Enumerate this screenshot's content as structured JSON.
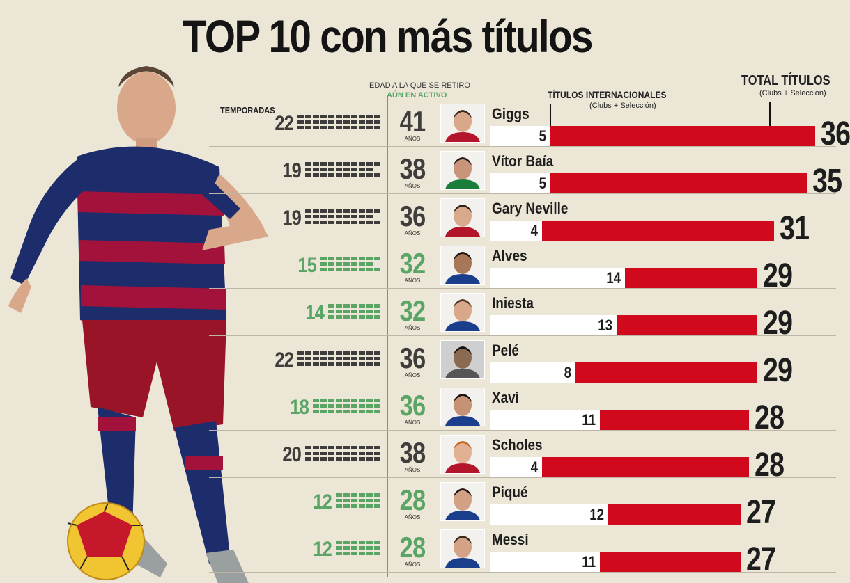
{
  "title": "TOP 10 con más títulos",
  "headers": {
    "seasons": "TEMPORADAS",
    "age_line1": "EDAD A LA QUE SE RETIRÓ",
    "age_line2": "AÚN EN ACTIVO",
    "intl_line1": "TÍTULOS INTERNACIONALES",
    "intl_line2": "(Clubs + Selección)",
    "total_line1": "TOTAL TÍTULOS",
    "total_line2": "(Clubs + Selección)",
    "age_unit": "AÑOS"
  },
  "colors": {
    "retired": "#3e3d3b",
    "active": "#5aa566",
    "bar": "#d0091c",
    "background": "#ece6d6"
  },
  "chart_data": {
    "type": "bar",
    "title": "TOP 10 con más títulos",
    "categories": [
      "Giggs",
      "Vítor Baía",
      "Gary Neville",
      "Alves",
      "Iniesta",
      "Pelé",
      "Xavi",
      "Scholes",
      "Piqué",
      "Messi"
    ],
    "series": [
      {
        "name": "TÍTULOS INTERNACIONALES",
        "values": [
          5,
          5,
          4,
          14,
          13,
          8,
          11,
          4,
          12,
          11
        ]
      },
      {
        "name": "TOTAL TÍTULOS",
        "values": [
          36,
          35,
          31,
          29,
          29,
          29,
          28,
          28,
          27,
          27
        ]
      },
      {
        "name": "TEMPORADAS",
        "values": [
          22,
          19,
          19,
          15,
          14,
          22,
          18,
          20,
          12,
          12
        ]
      },
      {
        "name": "EDAD",
        "values": [
          41,
          38,
          36,
          32,
          32,
          36,
          36,
          38,
          28,
          28
        ]
      }
    ],
    "active": [
      false,
      false,
      false,
      true,
      true,
      false,
      true,
      false,
      true,
      true
    ],
    "legend": "none"
  },
  "players": [
    {
      "name": "Giggs",
      "seasons": "22",
      "age": "41",
      "intl": "5",
      "total": "36"
    },
    {
      "name": "Vítor Baía",
      "seasons": "19",
      "age": "38",
      "intl": "5",
      "total": "35"
    },
    {
      "name": "Gary Neville",
      "seasons": "19",
      "age": "36",
      "intl": "4",
      "total": "31"
    },
    {
      "name": "Alves",
      "seasons": "15",
      "age": "32",
      "intl": "14",
      "total": "29"
    },
    {
      "name": "Iniesta",
      "seasons": "14",
      "age": "32",
      "intl": "13",
      "total": "29"
    },
    {
      "name": "Pelé",
      "seasons": "22",
      "age": "36",
      "intl": "8",
      "total": "29"
    },
    {
      "name": "Xavi",
      "seasons": "18",
      "age": "36",
      "intl": "11",
      "total": "28"
    },
    {
      "name": "Scholes",
      "seasons": "20",
      "age": "38",
      "intl": "4",
      "total": "28"
    },
    {
      "name": "Piqué",
      "seasons": "12",
      "age": "28",
      "intl": "12",
      "total": "27"
    },
    {
      "name": "Messi",
      "seasons": "12",
      "age": "28",
      "intl": "11",
      "total": "27"
    }
  ]
}
